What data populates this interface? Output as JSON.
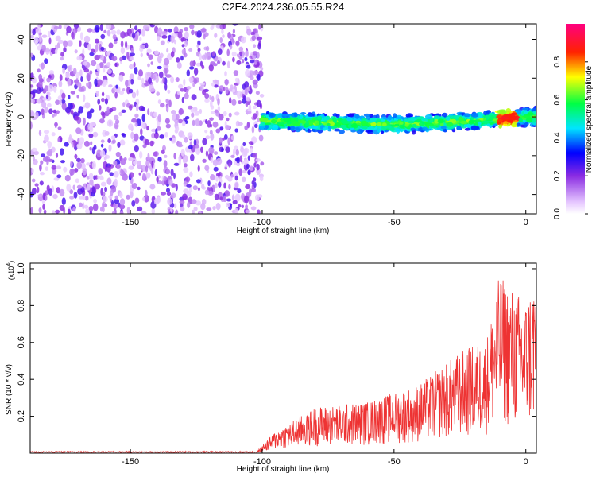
{
  "title": "C2E4.2024.236.05.55.R24",
  "chart_data": [
    {
      "type": "heatmap",
      "xlabel": "Height of straight line (km)",
      "ylabel": "Frequency (Hz)",
      "xlim": [
        -188,
        4
      ],
      "ylim": [
        -50,
        48
      ],
      "xticks": [
        -150,
        -100,
        -50,
        0
      ],
      "yticks": [
        -40,
        -20,
        0,
        20,
        40
      ],
      "colorbar": {
        "label": "Normalized spectral amplitude",
        "range": [
          0,
          1
        ],
        "ticks": [
          0.0,
          0.2,
          0.4,
          0.6,
          0.8
        ],
        "tick_labels": [
          "0.0",
          "0.2",
          "0.4",
          "0.6",
          "0.8"
        ],
        "colormap": "rainbow (white-purple-blue-cyan-green-yellow-red-magenta)"
      },
      "regions": [
        {
          "name": "noise",
          "x_range": [
            -188,
            -100
          ],
          "freq_range": [
            -50,
            48
          ],
          "level": "0.1-0.3"
        },
        {
          "name": "signal band",
          "x_range": [
            -100,
            4
          ],
          "freq_center_at_x": [
            [
              -100,
              -2
            ],
            [
              -50,
              -4
            ],
            [
              -20,
              -2
            ],
            [
              0,
              0
            ]
          ],
          "freq_halfwidth": 4,
          "level": "0.3-0.9"
        }
      ],
      "peak": {
        "x": -7,
        "freq": -1,
        "level": 0.9
      }
    },
    {
      "type": "line",
      "xlabel": "Height of straight line (km)",
      "ylabel": "SNR (10 * v/v)",
      "y_scale_label": "(x10",
      "y_scale_exp": "4",
      "y_scale_close": ")",
      "xlim": [
        -188,
        4
      ],
      "ylim": [
        0,
        1.03
      ],
      "xticks": [
        -150,
        -100,
        -50,
        0
      ],
      "yticks": [
        0.2,
        0.4,
        0.6,
        0.8,
        1.0
      ],
      "series": [
        {
          "color": "#ee3333",
          "envelope": [
            {
              "x": -188,
              "y": 0.01
            },
            {
              "x": -102,
              "y": 0.01
            },
            {
              "x": -95,
              "y": 0.12
            },
            {
              "x": -80,
              "y": 0.25
            },
            {
              "x": -60,
              "y": 0.28
            },
            {
              "x": -40,
              "y": 0.38
            },
            {
              "x": -25,
              "y": 0.55
            },
            {
              "x": -15,
              "y": 0.62
            },
            {
              "x": -10,
              "y": 0.97
            },
            {
              "x": 0,
              "y": 0.83
            },
            {
              "x": 4,
              "y": 1.01
            }
          ]
        }
      ]
    }
  ]
}
